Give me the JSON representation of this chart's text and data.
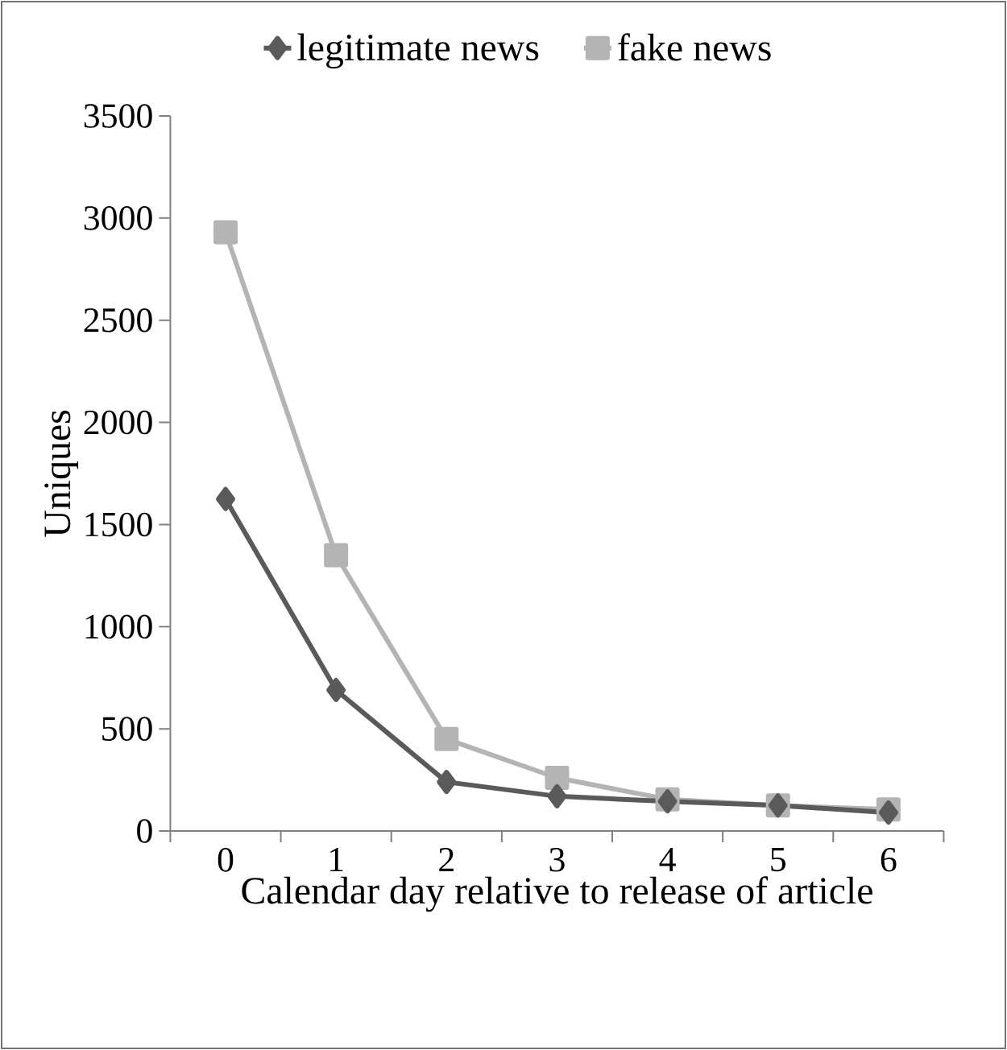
{
  "chart_data": {
    "type": "line",
    "xlabel": "Calendar day relative to release of article",
    "ylabel": "Uniques",
    "categories": [
      "0",
      "1",
      "2",
      "3",
      "4",
      "5",
      "6"
    ],
    "series": [
      {
        "name": "legitimate news",
        "color": "#5a5a5a",
        "marker": "diamond",
        "values": [
          1625,
          690,
          240,
          170,
          145,
          125,
          90
        ]
      },
      {
        "name": "fake news",
        "color": "#b4b4b4",
        "marker": "square",
        "values": [
          2930,
          1350,
          450,
          260,
          155,
          125,
          105
        ]
      }
    ],
    "ylim": [
      0,
      3500
    ],
    "yticks": [
      0,
      500,
      1000,
      1500,
      2000,
      2500,
      3000,
      3500
    ],
    "grid": false,
    "legend": "top",
    "line_style": "solid"
  }
}
